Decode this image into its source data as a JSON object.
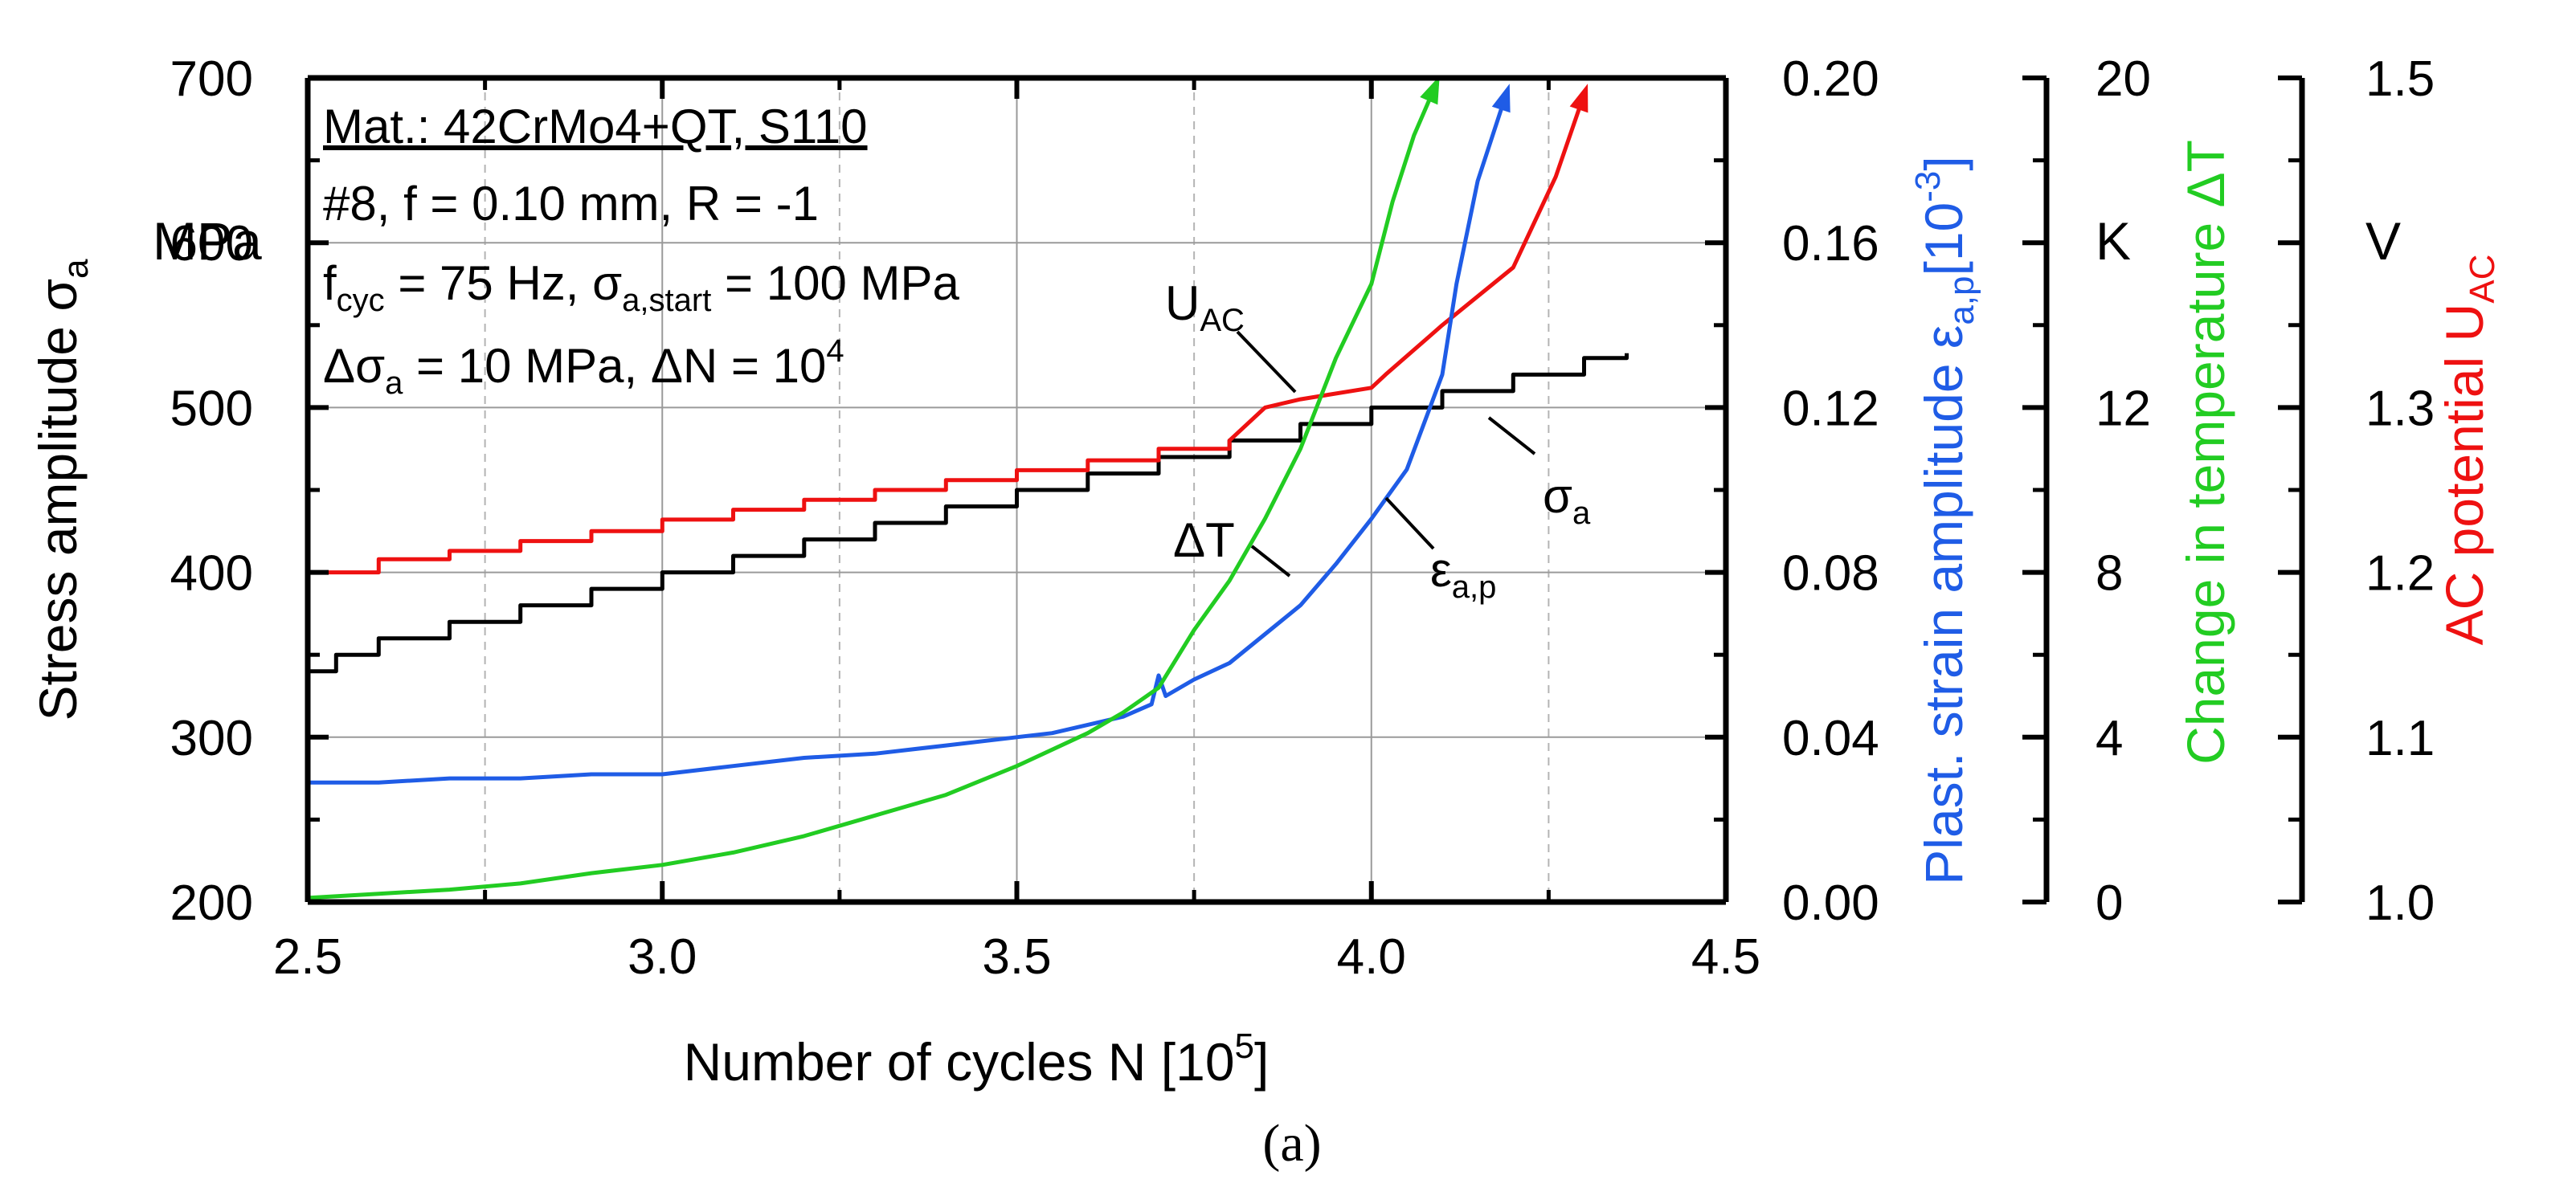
{
  "chart_data": {
    "type": "line",
    "panel_label": "(a)",
    "xlabel": "Number of cycles N [10",
    "xlabel_sup": "5",
    "xlabel_end": "]",
    "xlim": [
      2.5,
      4.5
    ],
    "xticks": [
      "2.5",
      "3.0",
      "3.5",
      "4.0",
      "4.5"
    ],
    "grid": true,
    "axes": {
      "stress": {
        "label": "Stress amplitude σ",
        "label_sub": "a",
        "unit": "MPa",
        "ylim": [
          200,
          700
        ],
        "ticks": [
          "200",
          "300",
          "400",
          "500",
          "600",
          "700"
        ]
      },
      "strain": {
        "label": "Plast. strain amplitude ε",
        "label_sub": "a,p",
        "label_bracket": "[10",
        "label_sup": "-3",
        "label_end": "]",
        "color": "#1f5ce6",
        "ylim": [
          0,
          0.2
        ],
        "ticks": [
          "0.00",
          "0.04",
          "0.08",
          "0.12",
          "0.16",
          "0.20"
        ]
      },
      "temperature": {
        "label": "Change in temperature ΔT",
        "unit": "K",
        "color": "#22cc22",
        "ylim": [
          0,
          20
        ],
        "ticks": [
          "0",
          "4",
          "8",
          "12",
          "",
          "20"
        ]
      },
      "potential": {
        "label": "AC potential U",
        "label_sub": "AC",
        "unit": "V",
        "color": "#ee1111",
        "ylim": [
          1.0,
          1.5
        ],
        "ticks": [
          "1.0",
          "1.1",
          "1.2",
          "1.3",
          "",
          "1.5"
        ]
      }
    },
    "info_box": {
      "line1": "Mat.: 42CrMo4+QT, S110",
      "line2": "#8, f = 0.10 mm, R = -1",
      "line3_a": "f",
      "line3_sub1": "cyc",
      "line3_b": " = 75 Hz, σ",
      "line3_sub2": "a,start",
      "line3_c": " = 100 MPa",
      "line4_a": "Δσ",
      "line4_sub": "a",
      "line4_b": " = 10 MPa, ΔN = 10",
      "line4_sup": "4"
    },
    "annotations": {
      "uac": "U",
      "uac_sub": "AC",
      "sigma": "σ",
      "sigma_sub": "a",
      "dt": "ΔT",
      "eps": "ε",
      "eps_sub": "a,p"
    },
    "series": [
      {
        "key": "sigma_a",
        "axis": "stress",
        "color": "#000000",
        "step_x": [
          2.5,
          2.54,
          2.6,
          2.7,
          2.8,
          2.9,
          3.0,
          3.1,
          3.2,
          3.3,
          3.4,
          3.5,
          3.6,
          3.7,
          3.8,
          3.9,
          4.0,
          4.1,
          4.2,
          4.3,
          4.36
        ],
        "step_y": [
          340,
          350,
          360,
          370,
          380,
          390,
          400,
          410,
          420,
          430,
          440,
          450,
          460,
          470,
          480,
          490,
          500,
          510,
          520,
          530,
          533
        ]
      },
      {
        "key": "u_ac",
        "axis": "potential",
        "color": "#ee1111",
        "x": [
          2.5,
          2.6,
          2.6,
          2.7,
          2.7,
          2.8,
          2.8,
          2.9,
          2.9,
          3.0,
          3.0,
          3.1,
          3.1,
          3.2,
          3.2,
          3.3,
          3.3,
          3.4,
          3.4,
          3.5,
          3.5,
          3.6,
          3.6,
          3.7,
          3.7,
          3.8,
          3.8,
          3.85,
          3.9,
          4.0,
          4.02,
          4.1,
          4.2,
          4.26,
          4.3
        ],
        "y": [
          1.2,
          1.2,
          1.208,
          1.208,
          1.213,
          1.213,
          1.219,
          1.219,
          1.225,
          1.225,
          1.232,
          1.232,
          1.238,
          1.238,
          1.244,
          1.244,
          1.25,
          1.25,
          1.256,
          1.256,
          1.262,
          1.262,
          1.268,
          1.268,
          1.275,
          1.275,
          1.28,
          1.3,
          1.305,
          1.312,
          1.32,
          1.35,
          1.385,
          1.44,
          1.49
        ]
      },
      {
        "key": "eps_ap",
        "axis": "strain",
        "color": "#1f5ce6",
        "x": [
          2.5,
          2.6,
          2.7,
          2.8,
          2.9,
          3.0,
          3.1,
          3.2,
          3.3,
          3.4,
          3.5,
          3.55,
          3.6,
          3.65,
          3.69,
          3.7,
          3.71,
          3.75,
          3.8,
          3.85,
          3.9,
          3.95,
          4.0,
          4.05,
          4.1,
          4.12,
          4.15,
          4.19
        ],
        "y": [
          0.029,
          0.029,
          0.03,
          0.03,
          0.031,
          0.031,
          0.033,
          0.035,
          0.036,
          0.038,
          0.04,
          0.041,
          0.043,
          0.045,
          0.048,
          0.055,
          0.05,
          0.054,
          0.058,
          0.065,
          0.072,
          0.082,
          0.093,
          0.105,
          0.128,
          0.15,
          0.175,
          0.196
        ]
      },
      {
        "key": "delta_t",
        "axis": "temperature",
        "color": "#22cc22",
        "x": [
          2.5,
          2.6,
          2.7,
          2.8,
          2.9,
          3.0,
          3.1,
          3.2,
          3.3,
          3.4,
          3.5,
          3.6,
          3.65,
          3.7,
          3.75,
          3.8,
          3.85,
          3.9,
          3.95,
          4.0,
          4.03,
          4.06,
          4.08,
          4.09
        ],
        "y": [
          0.1,
          0.2,
          0.3,
          0.45,
          0.7,
          0.9,
          1.2,
          1.6,
          2.1,
          2.6,
          3.3,
          4.1,
          4.6,
          5.2,
          6.6,
          7.8,
          9.3,
          11.0,
          13.2,
          15.0,
          17.0,
          18.6,
          19.4,
          19.8
        ]
      }
    ]
  }
}
